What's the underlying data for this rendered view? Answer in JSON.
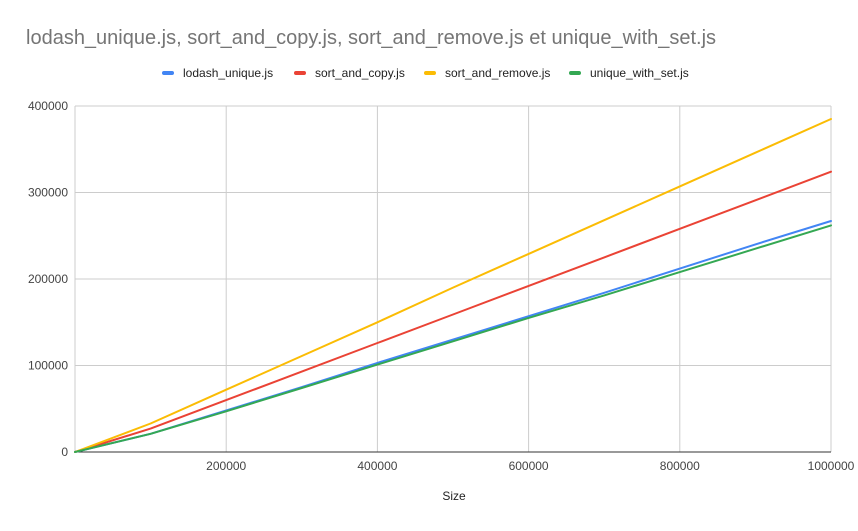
{
  "chart_data": {
    "type": "line",
    "title": "lodash_unique.js, sort_and_copy.js, sort_and_remove.js et unique_with_set.js",
    "xlabel": "Size",
    "ylabel": "",
    "x": [
      0,
      100000,
      200000,
      300000,
      400000,
      500000,
      600000,
      700000,
      800000,
      900000,
      1000000
    ],
    "xlim": [
      0,
      1000000
    ],
    "ylim": [
      0,
      400000
    ],
    "x_ticks": [
      "200000",
      "400000",
      "600000",
      "800000",
      "1000000"
    ],
    "x_tick_values": [
      200000,
      400000,
      600000,
      800000,
      1000000
    ],
    "y_ticks": [
      "0",
      "100000",
      "200000",
      "300000",
      "400000"
    ],
    "y_tick_values": [
      0,
      100000,
      200000,
      300000,
      400000
    ],
    "grid": true,
    "legend_position": "top",
    "series": [
      {
        "name": "lodash_unique.js",
        "color": "#4285F4",
        "values": [
          0,
          21000,
          48000,
          75000,
          103000,
          130000,
          157000,
          184000,
          212000,
          240000,
          267000
        ]
      },
      {
        "name": "sort_and_copy.js",
        "color": "#EA4335",
        "values": [
          0,
          27000,
          60000,
          93000,
          126000,
          159000,
          192000,
          225000,
          258000,
          291000,
          324000
        ]
      },
      {
        "name": "sort_and_remove.js",
        "color": "#FBBC04",
        "values": [
          0,
          33000,
          72000,
          111000,
          150000,
          190000,
          229000,
          268000,
          307000,
          346000,
          385000
        ]
      },
      {
        "name": "unique_with_set.js",
        "color": "#34A853",
        "values": [
          0,
          21000,
          47000,
          74000,
          101000,
          128000,
          155000,
          181000,
          208000,
          235000,
          262000
        ]
      }
    ]
  }
}
